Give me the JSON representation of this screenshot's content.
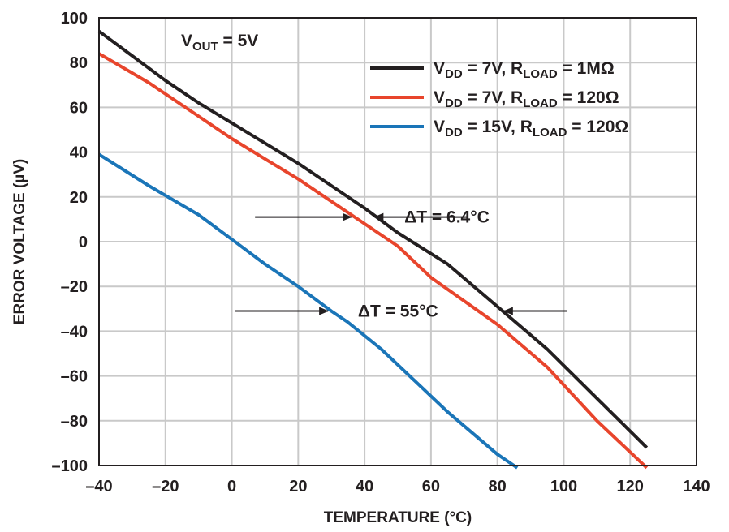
{
  "chart_data": {
    "type": "line",
    "xlabel": "TEMPERATURE (°C)",
    "ylabel": "ERROR VOLTAGE (µV)",
    "xlim": [
      -40,
      140
    ],
    "ylim": [
      -100,
      100
    ],
    "x_ticks": [
      "–40",
      "–20",
      "0",
      "20",
      "40",
      "60",
      "80",
      "100",
      "120",
      "140"
    ],
    "y_ticks": [
      "100",
      "80",
      "60",
      "40",
      "20",
      "0",
      "–20",
      "–40",
      "–60",
      "–80",
      "–100"
    ],
    "grid": true,
    "legend_position": "top-right",
    "condition_label": {
      "main": "V",
      "sub": "OUT",
      "rest": " = 5V"
    },
    "series": [
      {
        "name": "VDD = 7V, RLOAD = 1MΩ",
        "color": "#231f20",
        "legend": {
          "a": "V",
          "a_sub": "DD",
          "b": " = 7V, R",
          "b_sub": "LOAD",
          "c": " = 1MΩ"
        },
        "x": [
          -40,
          -30,
          -20,
          -10,
          0,
          10,
          20,
          30,
          40,
          50,
          65,
          80,
          95,
          110,
          125
        ],
        "y": [
          94,
          83,
          72,
          62,
          53,
          44,
          35,
          25,
          15,
          4,
          -10,
          -29,
          -48,
          -70,
          -92
        ]
      },
      {
        "name": "VDD = 7V, RLOAD = 120Ω",
        "color": "#e8452c",
        "legend": {
          "a": "V",
          "a_sub": "DD",
          "b": " = 7V, R",
          "b_sub": "LOAD",
          "c": " = 120Ω"
        },
        "x": [
          -40,
          -25,
          -10,
          0,
          10,
          20,
          30,
          40,
          50,
          60,
          80,
          95,
          110,
          125
        ],
        "y": [
          84,
          71,
          56,
          46,
          37,
          28,
          18,
          8,
          -2,
          -16,
          -37,
          -56,
          -80,
          -101
        ]
      },
      {
        "name": "VDD = 15V, RLOAD = 120Ω",
        "color": "#1a75b8",
        "legend": {
          "a": "V",
          "a_sub": "DD",
          "b": " = 15V, R",
          "b_sub": "LOAD",
          "c": " = 120Ω"
        },
        "x": [
          -40,
          -25,
          -10,
          0,
          10,
          20,
          30,
          35,
          45,
          55,
          65,
          80,
          86
        ],
        "y": [
          39,
          25,
          12,
          1,
          -10,
          -20,
          -31,
          -36,
          -48,
          -62,
          -76,
          -95,
          -101
        ]
      }
    ],
    "annotations": [
      {
        "text": "ΔT = 6.4°C",
        "text_x": 52,
        "text_y": 11,
        "arrow_left": {
          "from_x": 7,
          "to_x": 36,
          "y": 11
        },
        "arrow_right": {
          "from_x": 71,
          "to_x": 43,
          "y": 11
        }
      },
      {
        "text": "ΔT = 55°C",
        "text_x": 38,
        "text_y": -31,
        "arrow_left": {
          "from_x": 1,
          "to_x": 29,
          "y": -31
        },
        "arrow_right": {
          "from_x": 101,
          "to_x": 82,
          "y": -31
        }
      }
    ]
  }
}
